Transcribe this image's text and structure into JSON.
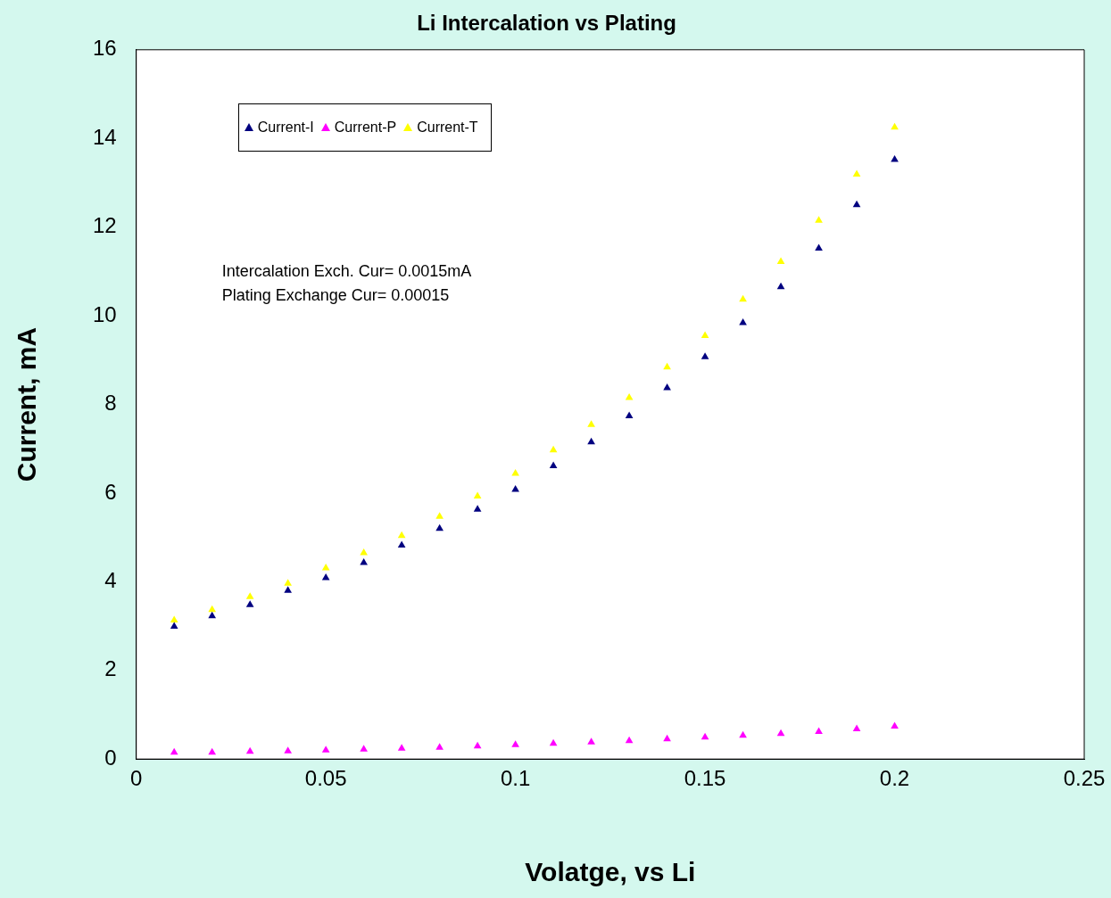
{
  "chart_data": {
    "type": "scatter",
    "title": "Li Intercalation vs Plating",
    "xlabel": "Volatge, vs Li",
    "ylabel": "Current, mA",
    "x": [
      0.01,
      0.02,
      0.03,
      0.04,
      0.05,
      0.06,
      0.07,
      0.08,
      0.09,
      0.1,
      0.11,
      0.12,
      0.13,
      0.14,
      0.15,
      0.16,
      0.17,
      0.18,
      0.19,
      0.2
    ],
    "series": [
      {
        "name": "Current-I",
        "color": "#000080",
        "values": [
          2.99,
          3.23,
          3.48,
          3.8,
          4.09,
          4.43,
          4.82,
          5.2,
          5.63,
          6.08,
          6.61,
          7.15,
          7.74,
          8.37,
          9.07,
          9.84,
          10.65,
          11.52,
          12.5,
          13.52
        ]
      },
      {
        "name": "Current-P",
        "color": "#ff00ff",
        "values": [
          0.15,
          0.15,
          0.17,
          0.18,
          0.2,
          0.22,
          0.24,
          0.26,
          0.29,
          0.32,
          0.35,
          0.38,
          0.41,
          0.45,
          0.49,
          0.53,
          0.57,
          0.62,
          0.68,
          0.74
        ]
      },
      {
        "name": "Current-T",
        "color": "#ffff00",
        "values": [
          3.13,
          3.37,
          3.66,
          3.96,
          4.31,
          4.65,
          5.04,
          5.47,
          5.93,
          6.44,
          6.97,
          7.54,
          8.15,
          8.84,
          9.55,
          10.37,
          11.22,
          12.15,
          13.19,
          14.25
        ]
      }
    ],
    "xlim": [
      0,
      0.25
    ],
    "xticks": [
      0,
      0.05,
      0.1,
      0.15,
      0.2,
      0.25
    ],
    "ylim": [
      0,
      16
    ],
    "yticks": [
      0,
      2,
      4,
      6,
      8,
      10,
      12,
      14,
      16
    ],
    "annotations": [
      "Intercalation Exch. Cur= 0.0015mA",
      "Plating Exchange Cur= 0.00015"
    ],
    "grid": false,
    "legend": "top left",
    "marker": "triangle"
  }
}
